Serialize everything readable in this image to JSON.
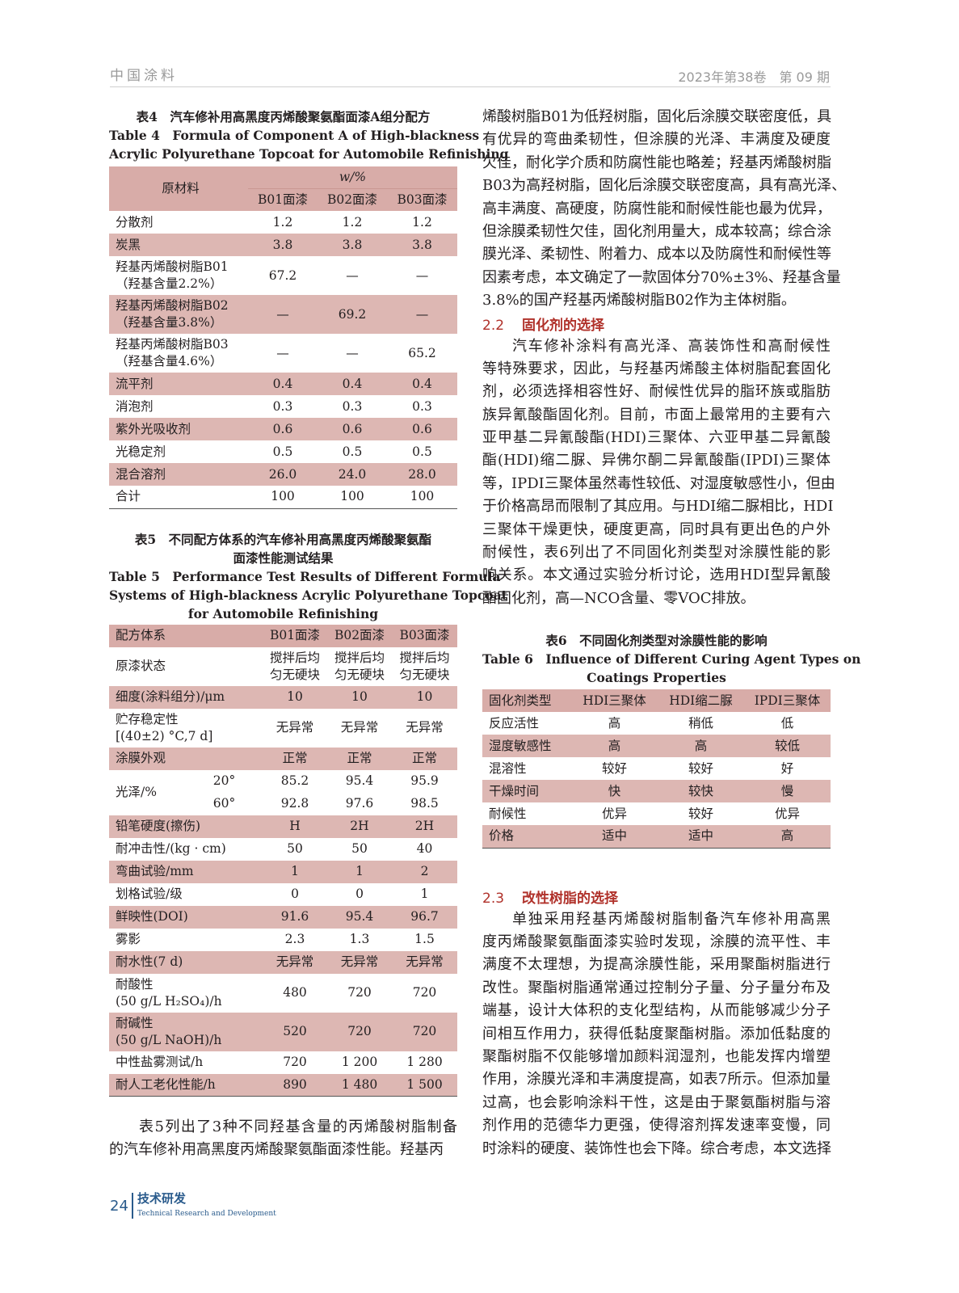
{
  "header": {
    "journal": "中国涂料",
    "issue": "2023年第38卷　第 09 期"
  },
  "footer": {
    "page": "24",
    "section": "技术研发",
    "section_en": "Technical Research and Development"
  },
  "colors": {
    "row_pink": "#ddb7b3",
    "header_pink": "#d8aca8",
    "section_red": "#b0312a",
    "footer_blue": "#2a5b8c"
  },
  "table4": {
    "caption_cn": "表4　汽车修补用高黑度丙烯酸聚氨酯面漆A组分配方",
    "caption_en": [
      "Table 4　Formula of Component A of High-blackness",
      "Acrylic Polyurethane Topcoat for Automobile Refinishing"
    ],
    "col0": "原材料",
    "unit": "w/%",
    "columns": [
      "B01面漆",
      "B02面漆",
      "B03面漆"
    ],
    "rows": [
      {
        "label": [
          "分散剂"
        ],
        "values": [
          "1.2",
          "1.2",
          "1.2"
        ]
      },
      {
        "label": [
          "炭黑"
        ],
        "values": [
          "3.8",
          "3.8",
          "3.8"
        ],
        "pink": true
      },
      {
        "label": [
          "羟基丙烯酸树脂B01",
          "（羟基含量2.2%）"
        ],
        "values": [
          "67.2",
          "—",
          "—"
        ]
      },
      {
        "label": [
          "羟基丙烯酸树脂B02",
          "（羟基含量3.8%）"
        ],
        "values": [
          "—",
          "69.2",
          "—"
        ],
        "pink": true
      },
      {
        "label": [
          "羟基丙烯酸树脂B03",
          "（羟基含量4.6%）"
        ],
        "values": [
          "—",
          "—",
          "65.2"
        ]
      },
      {
        "label": [
          "流平剂"
        ],
        "values": [
          "0.4",
          "0.4",
          "0.4"
        ],
        "pink": true
      },
      {
        "label": [
          "消泡剂"
        ],
        "values": [
          "0.3",
          "0.3",
          "0.3"
        ]
      },
      {
        "label": [
          "紫外光吸收剂"
        ],
        "values": [
          "0.6",
          "0.6",
          "0.6"
        ],
        "pink": true
      },
      {
        "label": [
          "光稳定剂"
        ],
        "values": [
          "0.5",
          "0.5",
          "0.5"
        ]
      },
      {
        "label": [
          "混合溶剂"
        ],
        "values": [
          "26.0",
          "24.0",
          "28.0"
        ],
        "pink": true
      },
      {
        "label": [
          "合计"
        ],
        "values": [
          "100",
          "100",
          "100"
        ]
      }
    ]
  },
  "table5": {
    "caption_cn": [
      "表5　不同配方体系的汽车修补用高黑度丙烯酸聚氨酯",
      "面漆性能测试结果"
    ],
    "caption_en": [
      "Table 5　Performance Test Results of Different Formula",
      "Systems of High-blackness Acrylic Polyurethane Topcoat",
      "for Automobile Refinishing"
    ],
    "col0": "配方体系",
    "columns": [
      "B01面漆",
      "B02面漆",
      "B03面漆"
    ],
    "rows": [
      {
        "label": [
          "原漆状态"
        ],
        "values": [
          [
            "搅拌后均",
            "匀无硬块"
          ],
          [
            "搅拌后均",
            "匀无硬块"
          ],
          [
            "搅拌后均",
            "匀无硬块"
          ]
        ],
        "h": 48
      },
      {
        "label": [
          "细度(涂料组分)/μm"
        ],
        "values": [
          "10",
          "10",
          "10"
        ],
        "pink": true
      },
      {
        "label": [
          "贮存稳定性",
          "[(40±2) °C,7 d]"
        ],
        "values": [
          "无异常",
          "无异常",
          "无异常"
        ]
      },
      {
        "label": [
          "涂膜外观"
        ],
        "values": [
          "正常",
          "正常",
          "正常"
        ],
        "pink": true
      },
      {
        "label": [
          "光泽/%"
        ],
        "sub": "20°",
        "values": [
          "85.2",
          "95.4",
          "95.9"
        ],
        "span": 2
      },
      {
        "sub": "60°",
        "values": [
          "92.8",
          "97.6",
          "98.5"
        ]
      },
      {
        "label": [
          "铅笔硬度(擦伤)"
        ],
        "values": [
          "H",
          "2H",
          "2H"
        ],
        "pink": true
      },
      {
        "label": [
          "耐冲击性/(kg · cm)"
        ],
        "values": [
          "50",
          "50",
          "40"
        ]
      },
      {
        "label": [
          "弯曲试验/mm"
        ],
        "values": [
          "1",
          "1",
          "2"
        ],
        "pink": true
      },
      {
        "label": [
          "划格试验/级"
        ],
        "values": [
          "0",
          "0",
          "1"
        ]
      },
      {
        "label": [
          "鲜映性(DOI)"
        ],
        "values": [
          "91.6",
          "95.4",
          "96.7"
        ],
        "pink": true
      },
      {
        "label": [
          "雾影"
        ],
        "values": [
          "2.3",
          "1.3",
          "1.5"
        ]
      },
      {
        "label": [
          "耐水性(7 d)"
        ],
        "values": [
          "无异常",
          "无异常",
          "无异常"
        ],
        "pink": true
      },
      {
        "label": [
          "耐酸性",
          "(50 g/L H₂SO₄)/h"
        ],
        "values": [
          "480",
          "720",
          "720"
        ]
      },
      {
        "label": [
          "耐碱性",
          "(50 g/L NaOH)/h"
        ],
        "values": [
          "520",
          "720",
          "720"
        ],
        "pink": true
      },
      {
        "label": [
          "中性盐雾测试/h"
        ],
        "values": [
          "720",
          "1 200",
          "1 280"
        ]
      },
      {
        "label": [
          "耐人工老化性能/h"
        ],
        "values": [
          "890",
          "1 480",
          "1 500"
        ],
        "pink": true
      }
    ]
  },
  "table6": {
    "caption_cn": "表6　不同固化剂类型对涂膜性能的影响",
    "caption_en": [
      "Table 6　Influence of Different Curing Agent Types on",
      "Coatings Properties"
    ],
    "col0": "固化剂类型",
    "columns": [
      "HDI三聚体",
      "HDI缩二脲",
      "IPDI三聚体"
    ],
    "rows": [
      {
        "label": [
          "反应活性"
        ],
        "values": [
          "高",
          "稍低",
          "低"
        ]
      },
      {
        "label": [
          "湿度敏感性"
        ],
        "values": [
          "高",
          "高",
          "较低"
        ],
        "pink": true
      },
      {
        "label": [
          "混溶性"
        ],
        "values": [
          "较好",
          "较好",
          "好"
        ]
      },
      {
        "label": [
          "干燥时间"
        ],
        "values": [
          "快",
          "较快",
          "慢"
        ],
        "pink": true
      },
      {
        "label": [
          "耐候性"
        ],
        "values": [
          "优异",
          "较好",
          "优异"
        ]
      },
      {
        "label": [
          "价格"
        ],
        "values": [
          "适中",
          "适中",
          "高"
        ],
        "pink": true
      }
    ]
  },
  "left_para": [
    "表5列出了3种不同羟基含量的丙烯酸树脂制备",
    "的汽车修补用高黑度丙烯酸聚氨酯面漆性能。羟基丙"
  ],
  "right_para1": [
    "烯酸树脂B01为低羟树脂，固化后涂膜交联密度低，具",
    "有优异的弯曲柔韧性，但涂膜的光泽、丰满度及硬度",
    "欠佳，耐化学介质和防腐性能也略差；羟基丙烯酸树脂",
    "B03为高羟树脂，固化后涂膜交联密度高，具有高光泽、",
    "高丰满度、高硬度，防腐性能和耐候性能也最为优异，",
    "但涂膜柔韧性欠佳，固化剂用量大，成本较高；综合涂",
    "膜光泽、柔韧性、附着力、成本以及防腐性和耐候性等",
    "因素考虑，本文确定了一款固体分70%±3%、羟基含量",
    "3.8%的国产羟基丙烯酸树脂B02作为主体树脂。"
  ],
  "sec22": {
    "num": "2.2",
    "title": "固化剂的选择"
  },
  "right_para2": [
    "汽车修补涂料有高光泽、高装饰性和高耐候性",
    "等特殊要求，因此，与羟基丙烯酸主体树脂配套固化",
    "剂，必须选择相容性好、耐候性优异的脂环族或脂肪",
    "族异氰酸酯固化剂。目前，市面上最常用的主要有六",
    "亚甲基二异氰酸酯(HDI)三聚体、六亚甲基二异氰酸",
    "酯(HDI)缩二脲、异佛尔酮二异氰酸酯(IPDI)三聚体",
    "等，IPDI三聚体虽然毒性较低、对湿度敏感性小，但由",
    "于价格高昂而限制了其应用。与HDI缩二脲相比，HDI",
    "三聚体干燥更快，硬度更高，同时具有更出色的户外",
    "耐候性，表6列出了不同固化剂类型对涂膜性能的影",
    "响关系。本文通过实验分析讨论，选用HDI型异氰酸",
    "酯固化剂，高—NCO含量、零VOC排放。"
  ],
  "sec23": {
    "num": "2.3",
    "title": "改性树脂的选择"
  },
  "right_para3": [
    "单独采用羟基丙烯酸树脂制备汽车修补用高黑",
    "度丙烯酸聚氨酯面漆实验时发现，涂膜的流平性、丰",
    "满度不太理想，为提高涂膜性能，采用聚酯树脂进行",
    "改性。聚酯树脂通常通过控制分子量、分子量分布及",
    "端基，设计大体积的支化型结构，从而能够减少分子",
    "间相互作用力，获得低黏度聚酯树脂。添加低黏度的",
    "聚酯树脂不仅能够增加颜料润湿剂，也能发挥内增塑",
    "作用，涂膜光泽和丰满度提高，如表7所示。但添加量",
    "过高，也会影响涂料干性，这是由于聚氨酯树脂与溶",
    "剂作用的范德华力更强，使得溶剂挥发速率变慢，同",
    "时涂料的硬度、装饰性也会下降。综合考虑，本文选择"
  ]
}
